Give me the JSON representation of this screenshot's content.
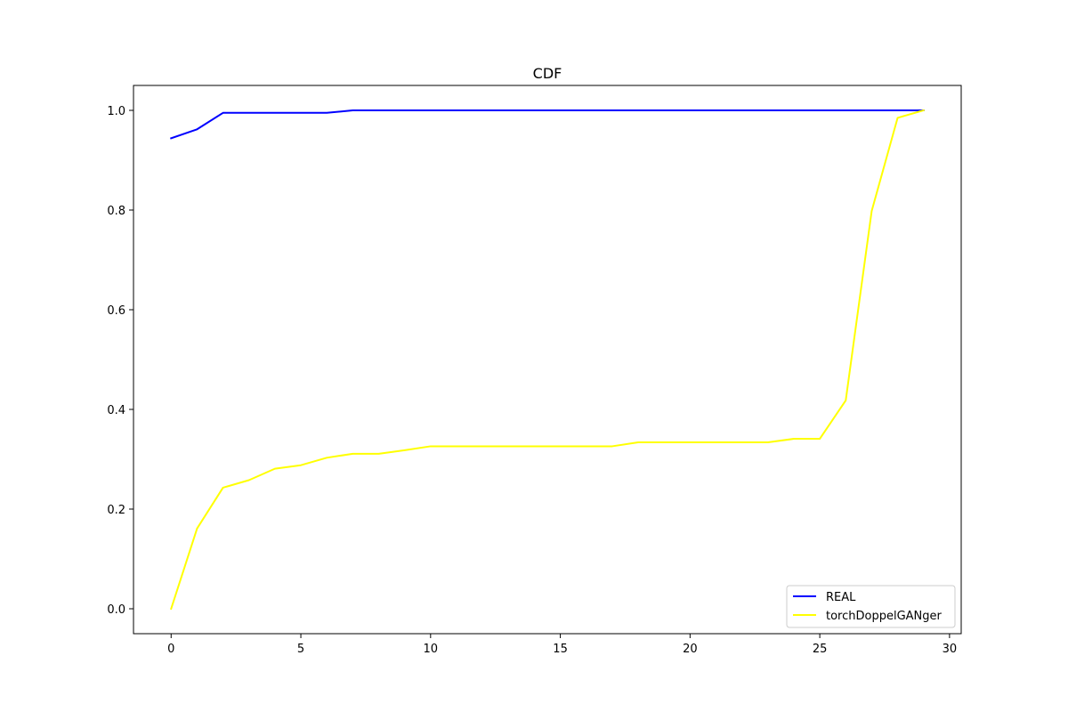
{
  "chart_data": {
    "type": "line",
    "title": "CDF",
    "xlabel": "",
    "ylabel": "",
    "xlim": [
      -1.45,
      30.45
    ],
    "ylim": [
      -0.05,
      1.05
    ],
    "xticks": [
      0,
      5,
      10,
      15,
      20,
      25,
      30
    ],
    "yticks": [
      0.0,
      0.2,
      0.4,
      0.6,
      0.8,
      1.0
    ],
    "xtick_labels": [
      "0",
      "5",
      "10",
      "15",
      "20",
      "25",
      "30"
    ],
    "ytick_labels": [
      "0.0",
      "0.2",
      "0.4",
      "0.6",
      "0.8",
      "1.0"
    ],
    "grid": false,
    "legend_position": "lower-right",
    "x": [
      0,
      1,
      2,
      3,
      4,
      5,
      6,
      7,
      8,
      9,
      10,
      11,
      12,
      13,
      14,
      15,
      16,
      17,
      18,
      19,
      20,
      21,
      22,
      23,
      24,
      25,
      26,
      27,
      28,
      29
    ],
    "series": [
      {
        "name": "REAL",
        "color": "#0000ff",
        "values": [
          0.944,
          0.962,
          0.995,
          0.995,
          0.995,
          0.995,
          0.995,
          1.0,
          1.0,
          1.0,
          1.0,
          1.0,
          1.0,
          1.0,
          1.0,
          1.0,
          1.0,
          1.0,
          1.0,
          1.0,
          1.0,
          1.0,
          1.0,
          1.0,
          1.0,
          1.0,
          1.0,
          1.0,
          1.0,
          1.0
        ]
      },
      {
        "name": "torchDoppelGANger",
        "color": "#ffff00",
        "values": [
          0.0,
          0.161,
          0.243,
          0.258,
          0.281,
          0.288,
          0.303,
          0.311,
          0.311,
          0.318,
          0.326,
          0.326,
          0.326,
          0.326,
          0.326,
          0.326,
          0.326,
          0.326,
          0.334,
          0.334,
          0.334,
          0.334,
          0.334,
          0.334,
          0.341,
          0.341,
          0.418,
          0.798,
          0.985,
          1.0
        ]
      }
    ]
  }
}
